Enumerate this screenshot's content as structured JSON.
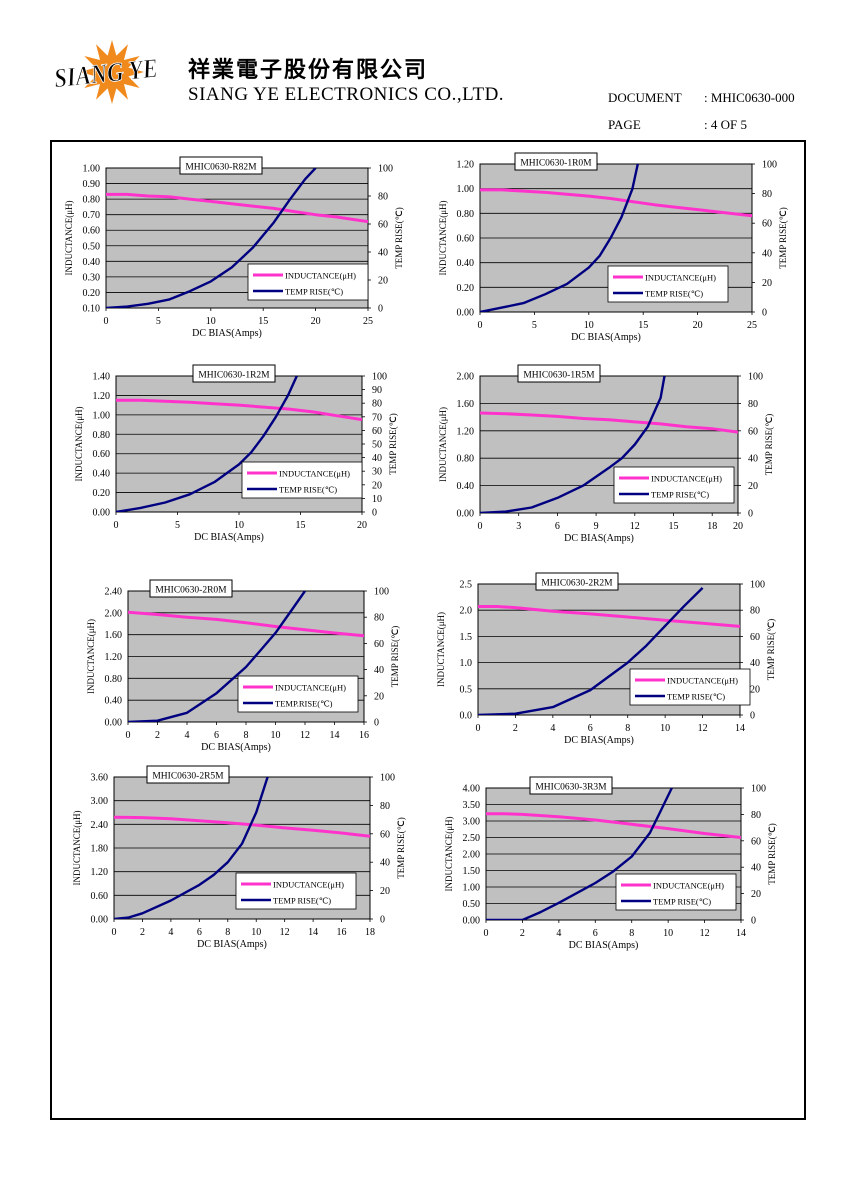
{
  "header": {
    "logo_text": "SIANG YE",
    "company_cn": "祥業電子股份有限公司",
    "company_en": "SIANG YE ELECTRONICS CO.,LTD.",
    "document_label": "DOCUMENT",
    "document_value": ": MHIC0630-000",
    "page_label": "PAGE",
    "page_value": ": 4 OF 5"
  },
  "colors": {
    "inductance": "#ff33cc",
    "temp_rise": "#000080",
    "plot_bg": "#c0c0c0",
    "grid": "#000000"
  },
  "chart_data": [
    {
      "type": "line",
      "title": "MHIC0630-R82M",
      "xlabel": "DC BIAS(Amps)",
      "ylabel": "INDUCTANCE(μH)",
      "y2label": "TEMP RISE(℃)",
      "xlim": [
        0,
        25
      ],
      "xticks": [
        "0",
        "5",
        "10",
        "15",
        "20",
        "25"
      ],
      "ylim": [
        0.1,
        1.0
      ],
      "yticks": [
        "0.10",
        "0.20",
        "0.30",
        "0.40",
        "0.50",
        "0.60",
        "0.70",
        "0.80",
        "0.90",
        "1.00"
      ],
      "y2lim": [
        0,
        100
      ],
      "y2ticks": [
        "0",
        "20",
        "40",
        "60",
        "80",
        "100"
      ],
      "legend": [
        "INDUCTANCE(μH)",
        "TEMP RISE(℃)"
      ],
      "legend_position": "center-left",
      "series": [
        {
          "name": "INDUCTANCE(μH)",
          "axis": "left",
          "x": [
            0,
            2,
            4,
            6,
            8,
            10,
            12,
            14,
            16,
            18,
            20,
            22,
            25
          ],
          "y": [
            0.83,
            0.83,
            0.82,
            0.815,
            0.8,
            0.785,
            0.77,
            0.755,
            0.74,
            0.72,
            0.7,
            0.685,
            0.655
          ]
        },
        {
          "name": "TEMP RISE(℃)",
          "axis": "right",
          "x": [
            0,
            2,
            4,
            6,
            8,
            10,
            12,
            14,
            16,
            17.5,
            19,
            20
          ],
          "y": [
            0,
            1,
            3,
            6,
            12,
            19,
            29,
            43,
            61,
            77,
            92,
            100
          ]
        }
      ]
    },
    {
      "type": "line",
      "title": "MHIC0630-1R0M",
      "xlabel": "DC BIAS(Amps)",
      "ylabel": "INDUCTANCE(μH)",
      "y2label": "TEMP RISE(℃)",
      "xlim": [
        0,
        25
      ],
      "xticks": [
        "0",
        "5",
        "10",
        "15",
        "20",
        "25"
      ],
      "ylim": [
        0.0,
        1.2
      ],
      "yticks": [
        "0.00",
        "0.20",
        "0.40",
        "0.60",
        "0.80",
        "1.00",
        "1.20"
      ],
      "y2lim": [
        0,
        100
      ],
      "y2ticks": [
        "0",
        "20",
        "40",
        "60",
        "80",
        "100"
      ],
      "legend": [
        "INDUCTANCE(μH)",
        "TEMP RISE(℃)"
      ],
      "legend_position": "center-right",
      "series": [
        {
          "name": "INDUCTANCE(μH)",
          "axis": "left",
          "x": [
            0,
            2,
            4,
            6,
            8,
            10,
            12,
            14,
            16,
            18,
            20,
            22,
            25
          ],
          "y": [
            0.99,
            0.99,
            0.98,
            0.97,
            0.955,
            0.94,
            0.92,
            0.895,
            0.87,
            0.85,
            0.83,
            0.81,
            0.78
          ]
        },
        {
          "name": "TEMP RISE(℃)",
          "axis": "right",
          "x": [
            0,
            2,
            4,
            6,
            8,
            10,
            11,
            12,
            13,
            14,
            14.5
          ],
          "y": [
            0,
            3,
            6,
            12,
            19,
            30,
            38,
            50,
            64,
            83,
            100
          ]
        }
      ]
    },
    {
      "type": "line",
      "title": "MHIC0630-1R2M",
      "xlabel": "DC BIAS(Amps)",
      "ylabel": "INDUCTANCE(μH)",
      "y2label": "TEMP RISE(℃)",
      "xlim": [
        0,
        20
      ],
      "xticks": [
        "0",
        "5",
        "10",
        "15",
        "20"
      ],
      "ylim": [
        0.0,
        1.4
      ],
      "yticks": [
        "0.00",
        "0.20",
        "0.40",
        "0.60",
        "0.80",
        "1.00",
        "1.20",
        "1.40"
      ],
      "y2lim": [
        0,
        100
      ],
      "y2ticks": [
        "0",
        "10",
        "20",
        "30",
        "40",
        "50",
        "60",
        "70",
        "80",
        "90",
        "100"
      ],
      "legend": [
        "INDUCTANCE(μH)",
        "TEMP RISE(℃)"
      ],
      "legend_position": "center-right",
      "series": [
        {
          "name": "INDUCTANCE(μH)",
          "axis": "left",
          "x": [
            0,
            2,
            4,
            6,
            8,
            10,
            12,
            14,
            16,
            18,
            20
          ],
          "y": [
            1.15,
            1.15,
            1.14,
            1.13,
            1.115,
            1.1,
            1.08,
            1.06,
            1.03,
            0.99,
            0.95
          ]
        },
        {
          "name": "TEMP RISE(℃)",
          "axis": "right",
          "x": [
            0,
            2,
            4,
            6,
            8,
            10,
            11,
            12,
            13,
            14,
            14.7
          ],
          "y": [
            0,
            3,
            7,
            13,
            22,
            35,
            44,
            56,
            70,
            86,
            100
          ]
        }
      ]
    },
    {
      "type": "line",
      "title": "MHIC0630-1R5M",
      "xlabel": "DC BIAS(Amps)",
      "ylabel": "INDUCTANCE(μH)",
      "y2label": "TEMP RISE(℃)",
      "xlim": [
        0,
        20
      ],
      "xticks": [
        "0",
        "3",
        "6",
        "9",
        "12",
        "15",
        "18",
        "20"
      ],
      "ylim": [
        0.0,
        2.0
      ],
      "yticks": [
        "0.00",
        "0.40",
        "0.80",
        "1.20",
        "1.60",
        "2.00"
      ],
      "y2lim": [
        0,
        100
      ],
      "y2ticks": [
        "0",
        "20",
        "40",
        "60",
        "80",
        "100"
      ],
      "legend": [
        "INDUCTANCE(μH)",
        "TEMP RISE(℃)"
      ],
      "legend_position": "center-right",
      "series": [
        {
          "name": "INDUCTANCE(μH)",
          "axis": "left",
          "x": [
            0,
            2,
            4,
            6,
            8,
            10,
            12,
            14,
            16,
            18,
            20
          ],
          "y": [
            1.46,
            1.45,
            1.43,
            1.41,
            1.38,
            1.36,
            1.33,
            1.3,
            1.26,
            1.23,
            1.18
          ]
        },
        {
          "name": "TEMP RISE(℃)",
          "axis": "right",
          "x": [
            0,
            2,
            4,
            6,
            8,
            10,
            11,
            12,
            13,
            14,
            14.3
          ],
          "y": [
            0,
            1,
            4,
            11,
            20,
            33,
            40,
            50,
            63,
            84,
            100
          ]
        }
      ]
    },
    {
      "type": "line",
      "title": "MHIC0630-2R0M",
      "xlabel": "DC BIAS(Amps)",
      "ylabel": "INDUCTANCE(μH)",
      "y2label": "TEMP RISE(℃)",
      "xlim": [
        0,
        16
      ],
      "xticks": [
        "0",
        "2",
        "4",
        "6",
        "8",
        "10",
        "12",
        "14",
        "16"
      ],
      "ylim": [
        0.0,
        2.4
      ],
      "yticks": [
        "0.00",
        "0.40",
        "0.80",
        "1.20",
        "1.60",
        "2.00",
        "2.40"
      ],
      "y2lim": [
        0,
        100
      ],
      "y2ticks": [
        "0",
        "20",
        "40",
        "60",
        "80",
        "100"
      ],
      "legend": [
        "INDUCTANCE(μH)",
        "TEMP.RISE(℃)"
      ],
      "legend_position": "bottom-right",
      "series": [
        {
          "name": "INDUCTANCE(μH)",
          "axis": "left",
          "x": [
            0,
            2,
            4,
            6,
            8,
            10,
            12,
            14,
            16
          ],
          "y": [
            2.01,
            1.97,
            1.92,
            1.88,
            1.82,
            1.75,
            1.69,
            1.63,
            1.58
          ]
        },
        {
          "name": "TEMP.RISE(℃)",
          "axis": "right",
          "x": [
            0,
            2,
            4,
            6,
            8,
            9,
            10,
            11,
            12
          ],
          "y": [
            0,
            1,
            7,
            22,
            42,
            55,
            68,
            84,
            100
          ]
        }
      ]
    },
    {
      "type": "line",
      "title": "MHIC0630-2R2M",
      "xlabel": "DC BIAS(Amps)",
      "ylabel": "INDUCTANCE(μH)",
      "y2label": "TEMP RISE(℃)",
      "xlim": [
        0,
        14
      ],
      "xticks": [
        "0",
        "2",
        "4",
        "6",
        "8",
        "10",
        "12",
        "14"
      ],
      "ylim": [
        0.0,
        2.5
      ],
      "yticks": [
        "0.0",
        "0.5",
        "1.0",
        "1.5",
        "2.0",
        "2.5"
      ],
      "y2lim": [
        0,
        100
      ],
      "y2ticks": [
        "0",
        "20",
        "40",
        "60",
        "80",
        "100"
      ],
      "legend": [
        "INDUCTANCE(μH)",
        "TEMP RISE(℃)"
      ],
      "legend_position": "bottom-right",
      "series": [
        {
          "name": "INDUCTANCE(μH)",
          "axis": "left",
          "x": [
            0,
            1,
            2,
            4,
            6,
            8,
            10,
            12,
            14
          ],
          "y": [
            2.07,
            2.07,
            2.05,
            1.98,
            1.93,
            1.87,
            1.81,
            1.75,
            1.69
          ]
        },
        {
          "name": "TEMP RISE(℃)",
          "axis": "right",
          "x": [
            0,
            2,
            4,
            6,
            8,
            9,
            10,
            11,
            12
          ],
          "y": [
            0,
            1,
            6,
            19,
            40,
            53,
            68,
            83,
            97
          ]
        }
      ]
    },
    {
      "type": "line",
      "title": "MHIC0630-2R5M",
      "xlabel": "DC BIAS(Amps)",
      "ylabel": "INDUCTANCE(μH)",
      "y2label": "TEMP RISE(℃)",
      "xlim": [
        0,
        18
      ],
      "xticks": [
        "0",
        "2",
        "4",
        "6",
        "8",
        "10",
        "12",
        "14",
        "16",
        "18"
      ],
      "ylim": [
        0.0,
        3.6
      ],
      "yticks": [
        "0.00",
        "0.60",
        "1.20",
        "1.80",
        "2.40",
        "3.00",
        "3.60"
      ],
      "y2lim": [
        0,
        100
      ],
      "y2ticks": [
        "0",
        "20",
        "40",
        "60",
        "80",
        "100"
      ],
      "legend": [
        "INDUCTANCE(μH)",
        "TEMP RISE(℃)"
      ],
      "legend_position": "bottom-right",
      "series": [
        {
          "name": "INDUCTANCE(μH)",
          "axis": "left",
          "x": [
            0,
            2,
            4,
            6,
            8,
            10,
            12,
            14,
            16,
            18
          ],
          "y": [
            2.58,
            2.57,
            2.54,
            2.49,
            2.44,
            2.38,
            2.31,
            2.25,
            2.18,
            2.1
          ]
        },
        {
          "name": "TEMP RISE(℃)",
          "axis": "right",
          "x": [
            0,
            1,
            2,
            4,
            6,
            7,
            8,
            9,
            10,
            10.8
          ],
          "y": [
            0,
            1,
            4,
            13,
            24,
            31,
            40,
            53,
            75,
            100
          ]
        }
      ]
    },
    {
      "type": "line",
      "title": "MHIC0630-3R3M",
      "xlabel": "DC BIAS(Amps)",
      "ylabel": "INDUCTANCE(μH)",
      "y2label": "TEMP RISE(℃)",
      "xlim": [
        0,
        14
      ],
      "xticks": [
        "0",
        "2",
        "4",
        "6",
        "8",
        "10",
        "12",
        "14"
      ],
      "ylim": [
        0.0,
        4.0
      ],
      "yticks": [
        "0.00",
        "0.50",
        "1.00",
        "1.50",
        "2.00",
        "2.50",
        "3.00",
        "3.50",
        "4.00"
      ],
      "y2lim": [
        0,
        100
      ],
      "y2ticks": [
        "0",
        "20",
        "40",
        "60",
        "80",
        "100"
      ],
      "legend": [
        "INDUCTANCE(μH)",
        "TEMP RISE(℃)"
      ],
      "legend_position": "bottom-right",
      "series": [
        {
          "name": "INDUCTANCE(μH)",
          "axis": "left",
          "x": [
            0,
            1,
            2,
            4,
            6,
            8,
            10,
            12,
            14
          ],
          "y": [
            3.22,
            3.22,
            3.2,
            3.13,
            3.03,
            2.9,
            2.77,
            2.62,
            2.5
          ]
        },
        {
          "name": "TEMP RISE(℃)",
          "axis": "right",
          "x": [
            0,
            1.5,
            2,
            3,
            4,
            6,
            7,
            8,
            9,
            9.5,
            10.2
          ],
          "y": [
            0,
            0,
            0,
            6,
            13,
            28,
            37,
            48,
            66,
            80,
            100
          ]
        }
      ]
    }
  ]
}
